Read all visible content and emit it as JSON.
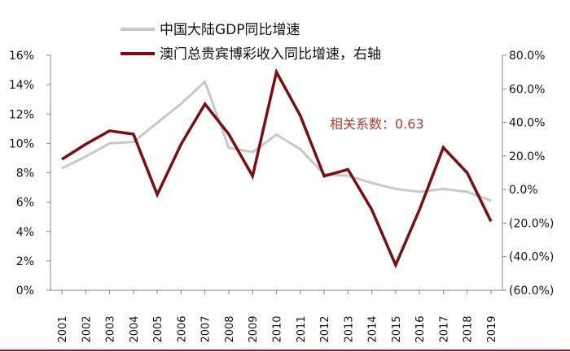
{
  "chart_data": {
    "type": "line",
    "x": [
      "2001",
      "2002",
      "2003",
      "2004",
      "2005",
      "2006",
      "2007",
      "2008",
      "2009",
      "2010",
      "2011",
      "2012",
      "2013",
      "2014",
      "2015",
      "2016",
      "2017",
      "2018",
      "2019"
    ],
    "series": [
      {
        "name": "中国大陆GDP同比增速",
        "axis": "left",
        "color": "#c8c8c8",
        "values": [
          8.3,
          9.1,
          10.0,
          10.1,
          11.4,
          12.7,
          14.2,
          9.7,
          9.4,
          10.6,
          9.6,
          7.9,
          7.8,
          7.3,
          6.9,
          6.7,
          6.9,
          6.7,
          6.1
        ]
      },
      {
        "name": "澳门总贵宾博彩收入同比增速，右轴",
        "axis": "right",
        "color": "#7a0e12",
        "values": [
          18,
          27,
          35,
          33,
          -3,
          27,
          51,
          33,
          8,
          70,
          44,
          8,
          12,
          -12,
          -45,
          -12,
          25,
          10,
          -19
        ]
      }
    ],
    "y_left": {
      "min": 0,
      "max": 16,
      "step": 2,
      "tick_labels": [
        "0%",
        "2%",
        "4%",
        "6%",
        "8%",
        "10%",
        "12%",
        "14%",
        "16%"
      ]
    },
    "y_right": {
      "min": -60,
      "max": 80,
      "step": 20,
      "tick_labels": [
        "(60.0%)",
        "(40.0%)",
        "(20.0%)",
        "0.0%",
        "20.0%",
        "40.0%",
        "60.0%",
        "80.0%"
      ]
    },
    "annotation": {
      "text": "相关系数：0.63",
      "color": "#b03a2e"
    },
    "legend_position": "top",
    "grid": false,
    "bottom_border_color": "#8b1a1a"
  }
}
